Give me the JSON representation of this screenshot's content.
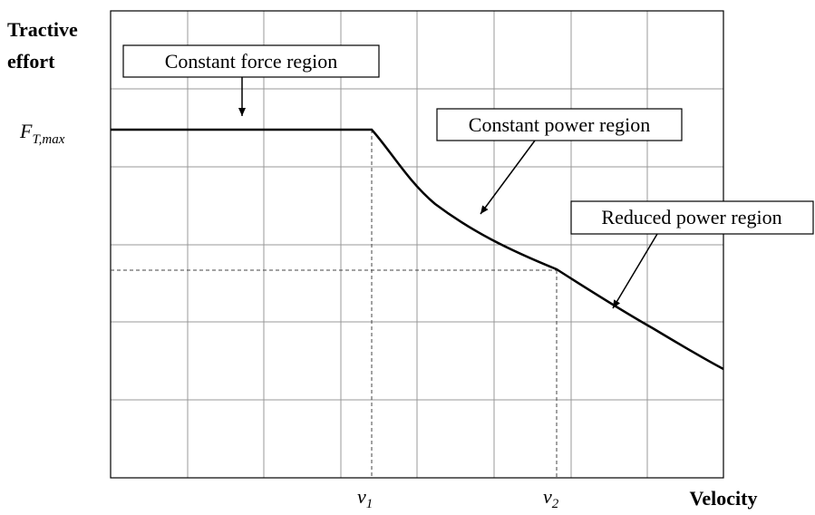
{
  "axis": {
    "y_label_line1": "Tractive",
    "y_label_line2": "effort",
    "x_label": "Velocity"
  },
  "y_marker": {
    "base": "F",
    "sub": "T,max"
  },
  "x_markers": [
    {
      "base": "v",
      "sub": "1"
    },
    {
      "base": "v",
      "sub": "2"
    }
  ],
  "regions": [
    "Constant force region",
    "Constant power region",
    "Reduced power region"
  ]
}
